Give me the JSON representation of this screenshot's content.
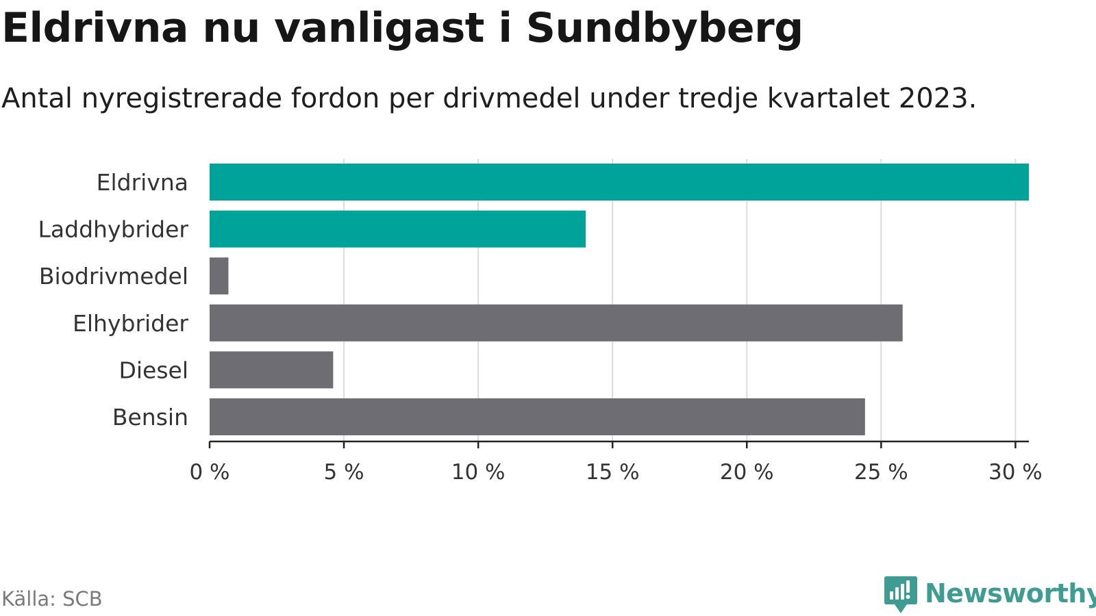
{
  "title": "Eldrivna nu vanligast i Sundbyberg",
  "subtitle": "Antal nyregistrerade fordon per drivmedel under tredje kvartalet 2023.",
  "source": "Källa: SCB",
  "brand": "Newsworthy",
  "colors": {
    "highlight": "#00a39a",
    "default": "#6e6d74",
    "grid": "#dcdcdc",
    "axis": "#222222",
    "brand": "#3f9c92"
  },
  "chart_data": {
    "type": "bar",
    "orientation": "horizontal",
    "title": "Eldrivna nu vanligast i Sundbyberg",
    "subtitle": "Antal nyregistrerade fordon per drivmedel under tredje kvartalet 2023.",
    "xlabel": "",
    "ylabel": "",
    "categories": [
      "Eldrivna",
      "Laddhybrider",
      "Biodrivmedel",
      "Elhybrider",
      "Diesel",
      "Bensin"
    ],
    "values": [
      30.5,
      14.0,
      0.7,
      25.8,
      4.6,
      24.4
    ],
    "highlighted": [
      true,
      true,
      false,
      false,
      false,
      false
    ],
    "xlim": [
      0,
      30.5
    ],
    "ticks": [
      0,
      5,
      10,
      15,
      20,
      25,
      30
    ],
    "tick_labels": [
      "0 %",
      "5 %",
      "10 %",
      "15 %",
      "20 %",
      "25 %",
      "30 %"
    ],
    "grid": true
  }
}
